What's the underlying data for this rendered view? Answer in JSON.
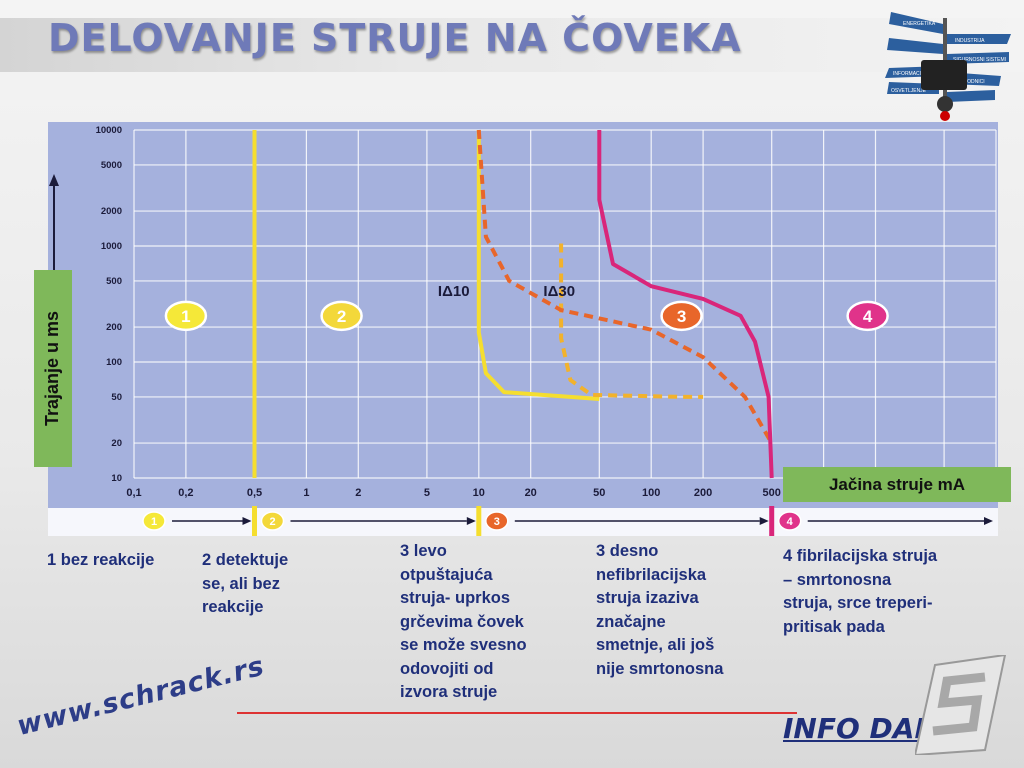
{
  "title": "DELOVANJE STRUJE NA ČOVEKA",
  "chart_data": {
    "type": "line",
    "ylabel": "Trajanje u ms",
    "xlabel": "Jačina struje mA",
    "x_scale": "log",
    "y_scale": "log",
    "xlim": [
      0.1,
      10000
    ],
    "ylim": [
      10,
      10000
    ],
    "x_ticks": [
      "0,1",
      "0,2",
      "0,5",
      "1",
      "2",
      "5",
      "10",
      "20",
      "50",
      "100",
      "200",
      "500"
    ],
    "y_ticks": [
      "10000",
      "5000",
      "2000",
      "1000",
      "500",
      "200",
      "100",
      "50",
      "20",
      "10"
    ],
    "grid": true,
    "zones": [
      {
        "label": "1",
        "color": "#f2e43a"
      },
      {
        "label": "2",
        "color": "#f2e43a"
      },
      {
        "label": "3",
        "color": "#e8662a"
      },
      {
        "label": "4",
        "color": "#d93380"
      }
    ],
    "annotations": [
      "IΔ10",
      "IΔ30"
    ],
    "series": [
      {
        "name": "",
        "color": "#f5de2f",
        "style": "solid",
        "points": [
          [
            0.5,
            10000
          ],
          [
            0.5,
            10
          ]
        ]
      },
      {
        "name": "",
        "color": "#f5de2f",
        "style": "solid",
        "points": [
          [
            10,
            10000
          ],
          [
            10,
            1000
          ]
        ]
      },
      {
        "name": "",
        "color": "#f5de2f",
        "style": "solid",
        "points": [
          [
            10,
            1000
          ],
          [
            10,
            180
          ],
          [
            11,
            80
          ],
          [
            14,
            55
          ],
          [
            50,
            48
          ]
        ]
      },
      {
        "name": "",
        "color": "#f2b22c",
        "style": "dashed",
        "points": [
          [
            30,
            1050
          ],
          [
            30,
            160
          ],
          [
            34,
            70
          ],
          [
            45,
            52
          ],
          [
            150,
            50
          ],
          [
            200,
            50
          ]
        ]
      },
      {
        "name": "",
        "color": "#e8662a",
        "style": "dashed",
        "points": [
          [
            10,
            10000
          ],
          [
            11,
            1200
          ],
          [
            15,
            500
          ],
          [
            30,
            280
          ],
          [
            100,
            190
          ],
          [
            200,
            110
          ],
          [
            350,
            50
          ],
          [
            500,
            20
          ]
        ]
      },
      {
        "name": "",
        "color": "#d9267a",
        "style": "solid",
        "points": [
          [
            50,
            10000
          ],
          [
            50,
            2500
          ],
          [
            60,
            700
          ],
          [
            100,
            450
          ],
          [
            200,
            350
          ],
          [
            330,
            250
          ],
          [
            400,
            150
          ],
          [
            480,
            50
          ],
          [
            500,
            10
          ]
        ]
      }
    ],
    "bottom_bar": [
      "1",
      "2",
      "3",
      "4"
    ]
  },
  "descriptions": [
    "1 bez reakcije",
    "2 detektuje\nse, ali bez\nreakcije",
    "3 levo\notpuštajuća\nstruja- uprkos\ngrčevima čovek\nse može svesno\nodovojiti od\nizvora struje",
    "3 desno\nnefibrilacijska\nstruja izaziva\nznačajne\nsmetnje, ali još\nnije smrtonosna",
    "4 fibrilacijska struja\n– smrtonosna\nstruja, srce treperi-\npritisak pada"
  ],
  "footer": {
    "website": "www.schrack.rs",
    "brand": "INFO DANI"
  },
  "signpost": [
    "ENERGETIKA",
    "INDUSTRIJA",
    "SIGURNOSNI SISTEMI",
    "INFORMACIONI",
    "PROVODNICI",
    "OSVETLJENJE"
  ]
}
